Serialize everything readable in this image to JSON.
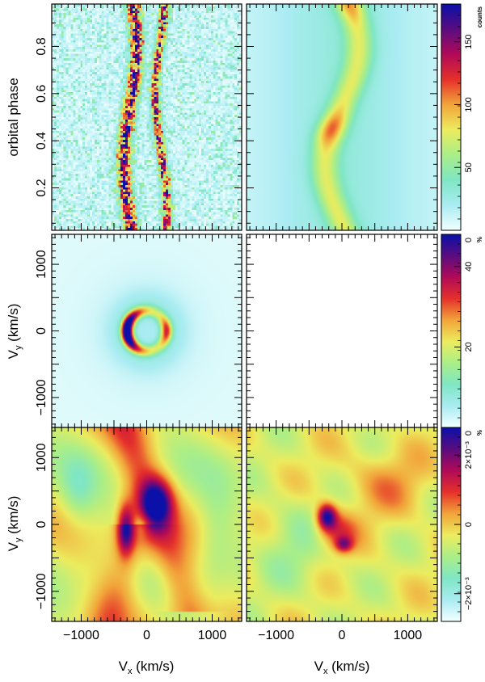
{
  "figure": {
    "colors": {
      "colormap": [
        "#f2ffff",
        "#a9ecf2",
        "#7fe6c4",
        "#aaee88",
        "#ecec5e",
        "#f2a43a",
        "#e5302a",
        "#b00a58",
        "#5a0c80",
        "#0a10a8"
      ]
    }
  },
  "chart_data": [
    {
      "id": "trailed-spectrum-observed",
      "type": "heatmap",
      "ylabel": "orbital phase",
      "ylim": [
        0.02,
        0.98
      ],
      "xlim": [
        -1450,
        1450
      ],
      "y_ticks": [
        "0.2",
        "0.4",
        "0.6",
        "0.8"
      ],
      "y_tick_values": [
        0.2,
        0.4,
        0.6,
        0.8
      ],
      "pattern": "noisy",
      "s_waves": [
        {
          "v_center": -250,
          "amplitude": 100,
          "phase_offset": 0.45,
          "width": 70,
          "strength": 1.0
        },
        {
          "v_center": 220,
          "amplitude": 90,
          "phase_offset": 0.15,
          "width": 50,
          "strength": 0.85
        }
      ]
    },
    {
      "id": "trailed-spectrum-model",
      "type": "heatmap",
      "ylim": [
        0.02,
        0.98
      ],
      "xlim": [
        -1450,
        1450
      ],
      "pattern": "smooth",
      "s_waves": [
        {
          "v_center": 0,
          "amplitude": 260,
          "phase_offset": 0.45,
          "width": 150,
          "strength": 0.55
        }
      ],
      "colorbar": {
        "unit": "counts",
        "ticks": [
          "50",
          "100",
          "150"
        ],
        "tick_values": [
          50,
          100,
          150
        ],
        "range": [
          0,
          180
        ]
      }
    },
    {
      "id": "doppler-map",
      "type": "heatmap",
      "ylabel": "V_y (km/s)",
      "xlim": [
        -1450,
        1450
      ],
      "ylim": [
        -1450,
        1450
      ],
      "y_ticks": [
        "−1000",
        "0",
        "1000"
      ],
      "y_tick_values": [
        -1000,
        0,
        1000
      ],
      "pattern": "ring",
      "colorbar": {
        "unit": "%",
        "top_label": "0",
        "ticks": [
          "20",
          "40"
        ],
        "tick_values": [
          20,
          40
        ],
        "range": [
          0,
          48
        ]
      }
    },
    {
      "id": "empty-panel",
      "type": "heatmap",
      "pattern": "empty"
    },
    {
      "id": "difference-map-left",
      "type": "heatmap",
      "ylabel": "V_y (km/s)",
      "xlabel": "V_x (km/s)",
      "xlim": [
        -1450,
        1450
      ],
      "ylim": [
        -1450,
        1450
      ],
      "x_ticks": [
        "−1000",
        "0",
        "1000"
      ],
      "x_tick_values": [
        -1000,
        0,
        1000
      ],
      "y_ticks": [
        "−1000",
        "0",
        "1000"
      ],
      "y_tick_values": [
        -1000,
        0,
        1000
      ],
      "pattern": "blob-left"
    },
    {
      "id": "difference-map-right",
      "type": "heatmap",
      "xlabel": "V_x (km/s)",
      "xlim": [
        -1450,
        1450
      ],
      "ylim": [
        -1450,
        1450
      ],
      "x_ticks": [
        "−1000",
        "0",
        "1000"
      ],
      "x_tick_values": [
        -1000,
        0,
        1000
      ],
      "pattern": "blob-right",
      "colorbar": {
        "unit": "%",
        "top_label": "0",
        "ticks": [
          "−2×10⁻³",
          "0",
          "2×10⁻³"
        ],
        "tick_values": [
          -0.002,
          0,
          0.002
        ],
        "range": [
          -0.0028,
          0.0028
        ]
      }
    }
  ]
}
